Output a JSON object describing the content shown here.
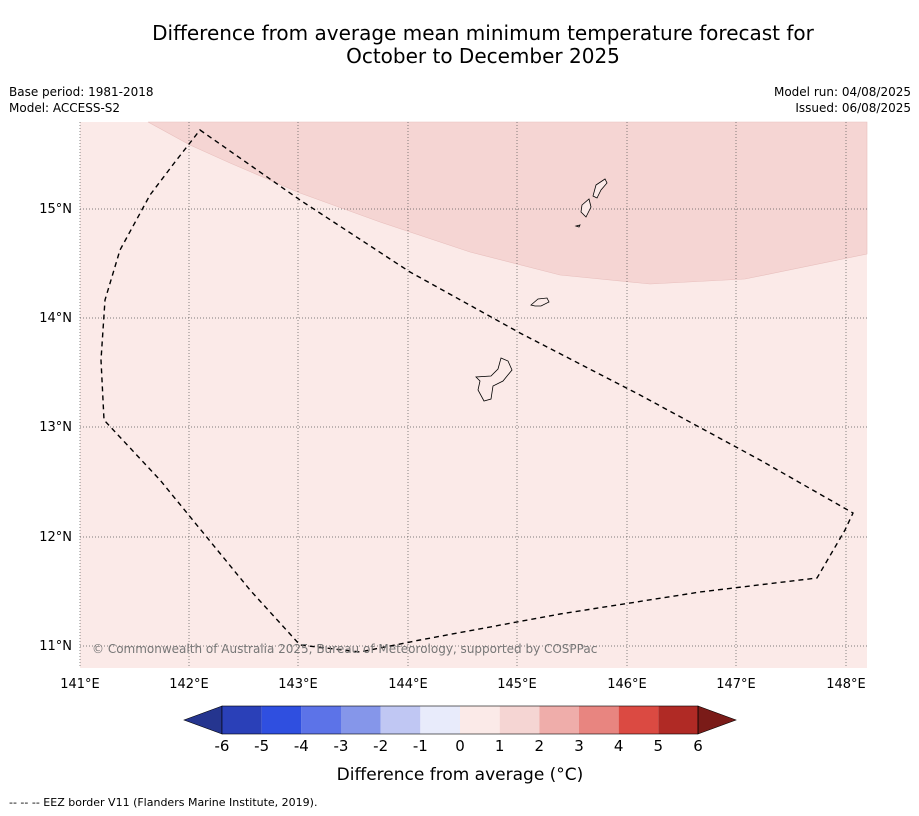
{
  "title_line1": "Difference from average mean minimum temperature forecast for",
  "title_line2": "October to December 2025",
  "meta_left": {
    "base_period": "Base period: 1981-2018",
    "model": "Model: ACCESS-S2"
  },
  "meta_right": {
    "model_run": "Model run: 04/08/2025",
    "issued": "Issued: 06/08/2025"
  },
  "map": {
    "lon_ticks": [
      "141°E",
      "142°E",
      "143°E",
      "144°E",
      "145°E",
      "146°E",
      "147°E",
      "148°E"
    ],
    "lat_ticks": [
      "15°N",
      "14°N",
      "13°N",
      "12°N",
      "11°N"
    ],
    "copyright": "© Commonwealth of Australia 2025, Bureau of Meteorology, supported by COSPPac",
    "colors": {
      "anomaly_0_1": "#fbeae8",
      "anomaly_1_2": "#f5d5d3"
    }
  },
  "colorbar": {
    "title": "Difference from average (°C)",
    "tick_labels": [
      "-6",
      "-5",
      "-4",
      "-3",
      "-2",
      "-1",
      "0",
      "1",
      "2",
      "3",
      "4",
      "5",
      "6"
    ],
    "colors": [
      "#25358f",
      "#2a40b8",
      "#2f4fe0",
      "#5c73e8",
      "#8596ea",
      "#c0c7f3",
      "#e8ebfb",
      "#fbeae8",
      "#f5d5d3",
      "#efadaa",
      "#e88580",
      "#db4a42",
      "#b02a25",
      "#7a1b18"
    ]
  },
  "footnote": "--  --  -- EEZ border V11 (Flanders Marine Institute, 2019)."
}
